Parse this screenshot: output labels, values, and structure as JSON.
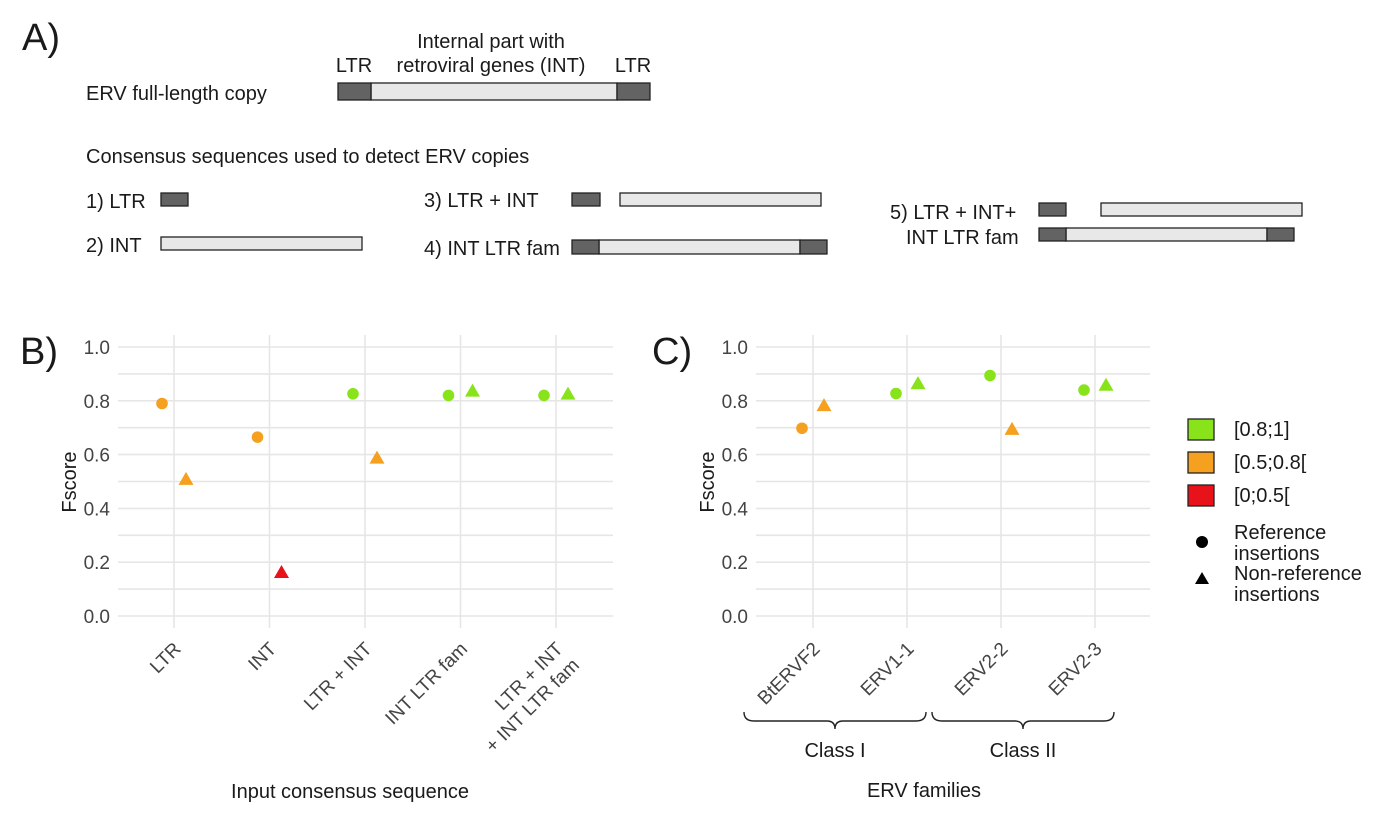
{
  "panel_a": {
    "letter": "A)",
    "diagram": {
      "full_copy_label": "ERV full-length copy",
      "ltr_label": "LTR",
      "internal_label_line1": "Internal part with",
      "internal_label_line2": "retroviral genes (INT)",
      "consensus_title": "Consensus sequences used to detect ERV copies",
      "options": [
        {
          "label": "1) LTR"
        },
        {
          "label": "2)  INT"
        },
        {
          "label": "3) LTR + INT"
        },
        {
          "label": "4) INT LTR fam"
        },
        {
          "label_line1": "5) LTR + INT+",
          "label_line2": "INT LTR fam"
        }
      ]
    }
  },
  "legend": {
    "bins": [
      {
        "label": "[0.8;1]",
        "color": "#88e31a"
      },
      {
        "label": "[0.5;0.8[",
        "color": "#f5a01f"
      },
      {
        "label": "[0;0.5[",
        "color": "#e8131a"
      }
    ],
    "shapes": [
      {
        "shape": "circle",
        "label_line1": "Reference",
        "label_line2": "insertions"
      },
      {
        "shape": "triangle",
        "label_line1": "Non-reference",
        "label_line2": "insertions"
      }
    ]
  },
  "chart_data": [
    {
      "panel": "B)",
      "type": "scatter",
      "xlabel": "Input consensus sequence",
      "ylabel": "Fscore",
      "ylim": [
        0,
        1
      ],
      "yticks": [
        "0.0",
        "0.2",
        "0.4",
        "0.6",
        "0.8",
        "1.0"
      ],
      "grid": true,
      "categories": [
        {
          "label": [
            "LTR"
          ]
        },
        {
          "label": [
            "INT"
          ]
        },
        {
          "label": [
            "LTR + INT"
          ]
        },
        {
          "label": [
            "INT LTR fam"
          ]
        },
        {
          "label": [
            "LTR + INT",
            "+ INT LTR fam"
          ]
        }
      ],
      "series": [
        {
          "name": "Reference insertions",
          "shape": "circle",
          "values": [
            0.79,
            0.665,
            0.826,
            0.82,
            0.82
          ]
        },
        {
          "name": "Non-reference insertions",
          "shape": "triangle",
          "values": [
            0.506,
            0.16,
            0.585,
            0.834,
            0.823
          ]
        }
      ]
    },
    {
      "panel": "C)",
      "type": "scatter",
      "xlabel": "ERV families",
      "ylabel": "Fscore",
      "ylim": [
        0,
        1
      ],
      "yticks": [
        "0.0",
        "0.2",
        "0.4",
        "0.6",
        "0.8",
        "1.0"
      ],
      "grid": true,
      "categories": [
        {
          "label": [
            "BtERVF2"
          ]
        },
        {
          "label": [
            "ERV1-1"
          ]
        },
        {
          "label": [
            "ERV2-2"
          ]
        },
        {
          "label": [
            "ERV2-3"
          ]
        }
      ],
      "groups": [
        {
          "label": "Class I",
          "members": [
            0,
            1
          ]
        },
        {
          "label": "Class II",
          "members": [
            2,
            3
          ]
        }
      ],
      "series": [
        {
          "name": "Reference insertions",
          "shape": "circle",
          "values": [
            0.698,
            0.827,
            0.894,
            0.84
          ]
        },
        {
          "name": "Non-reference insertions",
          "shape": "triangle",
          "values": [
            0.78,
            0.862,
            0.692,
            0.856
          ]
        }
      ]
    }
  ]
}
